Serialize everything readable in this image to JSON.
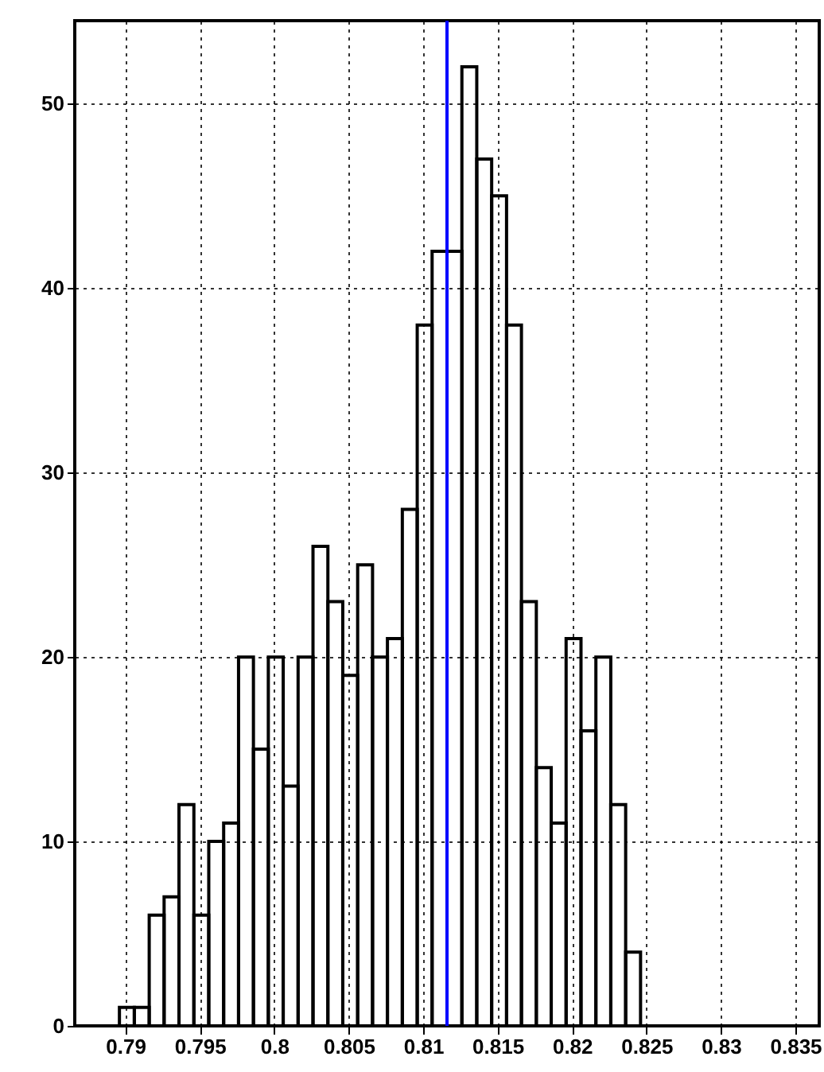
{
  "chart_data": {
    "type": "histogram",
    "bins": [
      0.7866,
      0.7876,
      0.7886,
      0.7896,
      0.7906,
      0.7916,
      0.7926,
      0.7936,
      0.7946,
      0.7956,
      0.7966,
      0.7976,
      0.7986,
      0.7996,
      0.8006,
      0.8016,
      0.8026,
      0.8036,
      0.8046,
      0.8056,
      0.8066,
      0.8076,
      0.8086,
      0.8096,
      0.8106,
      0.8116,
      0.8126,
      0.8136,
      0.8146,
      0.8156,
      0.8166,
      0.8176,
      0.8186,
      0.8196,
      0.8206,
      0.8216,
      0.8226,
      0.8236,
      0.8246,
      0.8256,
      0.8266,
      0.8276,
      0.8286,
      0.8296,
      0.8306,
      0.8316,
      0.8326,
      0.8336,
      0.8346,
      0.8356,
      0.8366
    ],
    "values": [
      0,
      0,
      0,
      1,
      1,
      6,
      7,
      12,
      6,
      10,
      11,
      20,
      15,
      20,
      13,
      20,
      26,
      23,
      19,
      25,
      20,
      21,
      28,
      38,
      42,
      42,
      52,
      47,
      45,
      38,
      23,
      14,
      11,
      21,
      16,
      20,
      12,
      4,
      0,
      0,
      0,
      0,
      0,
      0,
      0,
      0,
      0,
      0,
      0,
      0
    ],
    "color": "#000000",
    "xlim": [
      0.7866,
      0.8366
    ],
    "xticks": [
      0.79,
      0.795,
      0.8,
      0.805,
      0.81,
      0.815,
      0.82,
      0.825,
      0.83,
      0.835
    ],
    "ylim": [
      0,
      54.5
    ],
    "yticks": [
      0,
      10,
      20,
      30,
      40,
      50
    ],
    "grid": true,
    "ref_lines": [
      {
        "axis": "x",
        "value": 0.8116,
        "color": "#0000ff"
      }
    ]
  }
}
